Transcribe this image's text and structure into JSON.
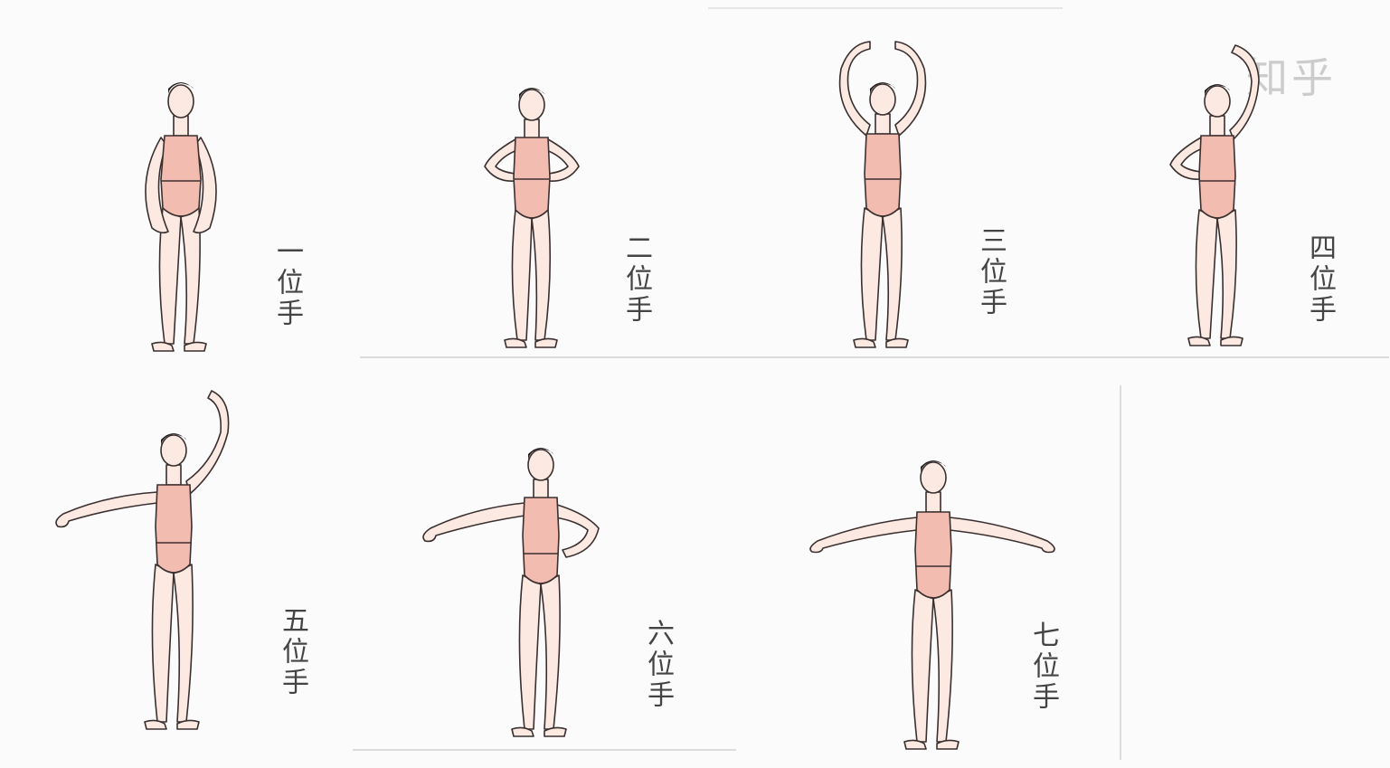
{
  "positions": [
    {
      "name": "position-1",
      "caption": "一位手"
    },
    {
      "name": "position-2",
      "caption": "二位手"
    },
    {
      "name": "position-3",
      "caption": "三位手"
    },
    {
      "name": "position-4",
      "caption": "四位手"
    },
    {
      "name": "position-5",
      "caption": "五位手"
    },
    {
      "name": "position-6",
      "caption": "六位手"
    },
    {
      "name": "position-7",
      "caption": "七位手"
    }
  ],
  "watermark": "知乎",
  "colors": {
    "leotard": "#f2bdb0",
    "skin": "#fbe9e2",
    "outline": "#3a3030",
    "hair": "#1e1a1a",
    "caption": "#444444"
  }
}
